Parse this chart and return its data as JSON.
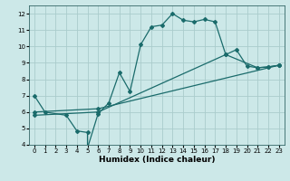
{
  "xlabel": "Humidex (Indice chaleur)",
  "bg_color": "#cce8e8",
  "line_color": "#1a6b6b",
  "grid_color": "#aacccc",
  "xlim": [
    -0.5,
    23.5
  ],
  "ylim": [
    4,
    12.5
  ],
  "xticks": [
    0,
    1,
    2,
    3,
    4,
    5,
    6,
    7,
    8,
    9,
    10,
    11,
    12,
    13,
    14,
    15,
    16,
    17,
    18,
    19,
    20,
    21,
    22,
    23
  ],
  "yticks": [
    4,
    5,
    6,
    7,
    8,
    9,
    10,
    11,
    12
  ],
  "line1_x": [
    0,
    1,
    3,
    4,
    5,
    5,
    6,
    7,
    8,
    9,
    10,
    11,
    12,
    13,
    14,
    15,
    16,
    17,
    18,
    21,
    22,
    23
  ],
  "line1_y": [
    7.0,
    6.0,
    5.8,
    4.85,
    4.75,
    3.8,
    5.9,
    6.55,
    8.4,
    7.25,
    10.1,
    11.2,
    11.3,
    12.0,
    11.6,
    11.5,
    11.65,
    11.5,
    9.5,
    8.7,
    8.75,
    8.85
  ],
  "line2_x": [
    0,
    6,
    23
  ],
  "line2_y": [
    6.0,
    6.2,
    8.85
  ],
  "line3_x": [
    0,
    6,
    18,
    19,
    20,
    21,
    22,
    23
  ],
  "line3_y": [
    5.8,
    6.0,
    9.5,
    9.8,
    8.8,
    8.7,
    8.75,
    8.85
  ]
}
